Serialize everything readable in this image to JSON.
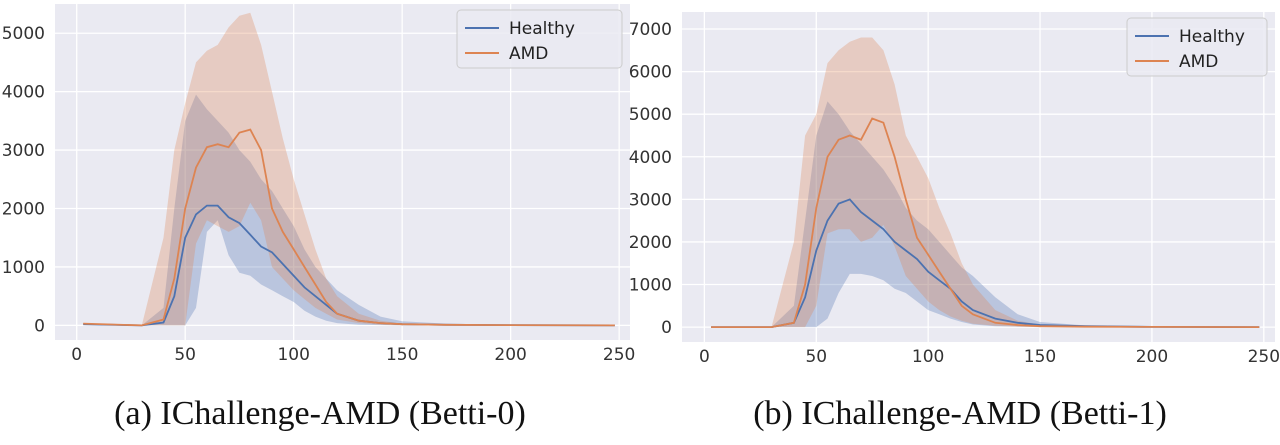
{
  "chart_data": [
    {
      "type": "area",
      "caption_letter": "(a)",
      "caption_text": "IChallenge-AMD (Betti-0)",
      "x_ticks": [
        0,
        50,
        100,
        150,
        200,
        250
      ],
      "y_ticks": [
        0,
        1000,
        2000,
        3000,
        4000,
        5000
      ],
      "xlim": [
        -10,
        255
      ],
      "ylim": [
        -250,
        5500
      ],
      "grid": true,
      "legend_position": "top-right",
      "series": [
        {
          "name": "Healthy",
          "color": "#4c72b0",
          "x": [
            3,
            30,
            40,
            45,
            50,
            55,
            60,
            65,
            70,
            75,
            80,
            85,
            90,
            95,
            100,
            105,
            110,
            115,
            120,
            130,
            140,
            150,
            170,
            200,
            248
          ],
          "mean": [
            20,
            0,
            50,
            500,
            1500,
            1900,
            2050,
            2050,
            1850,
            1750,
            1550,
            1350,
            1250,
            1050,
            850,
            650,
            500,
            350,
            200,
            80,
            40,
            20,
            10,
            5,
            0
          ],
          "upper": [
            20,
            0,
            300,
            2000,
            3500,
            3950,
            3700,
            3500,
            3300,
            3000,
            2800,
            2500,
            2300,
            2000,
            1700,
            1300,
            1000,
            800,
            600,
            350,
            150,
            70,
            30,
            10,
            0
          ],
          "lower": [
            20,
            0,
            0,
            0,
            0,
            300,
            1600,
            1800,
            1200,
            900,
            850,
            700,
            600,
            500,
            400,
            250,
            150,
            80,
            40,
            10,
            5,
            0,
            0,
            0,
            0
          ]
        },
        {
          "name": "AMD",
          "color": "#dd8452",
          "x": [
            3,
            30,
            40,
            45,
            50,
            55,
            60,
            65,
            70,
            75,
            80,
            85,
            90,
            95,
            100,
            105,
            110,
            115,
            120,
            130,
            140,
            150,
            170,
            200,
            248
          ],
          "mean": [
            30,
            0,
            100,
            800,
            2000,
            2700,
            3050,
            3100,
            3050,
            3300,
            3350,
            3000,
            2000,
            1600,
            1300,
            1000,
            700,
            400,
            200,
            80,
            40,
            20,
            10,
            5,
            0
          ],
          "upper": [
            30,
            0,
            1500,
            3000,
            3800,
            4500,
            4700,
            4800,
            5100,
            5300,
            5350,
            4800,
            4000,
            3200,
            2500,
            1900,
            1300,
            800,
            500,
            200,
            80,
            30,
            10,
            5,
            0
          ],
          "lower": [
            30,
            0,
            0,
            0,
            0,
            1400,
            1800,
            1700,
            1600,
            1700,
            2100,
            1800,
            1000,
            800,
            600,
            450,
            300,
            200,
            100,
            40,
            10,
            0,
            0,
            0,
            0
          ]
        }
      ]
    },
    {
      "type": "area",
      "caption_letter": "(b)",
      "caption_text": "IChallenge-AMD (Betti-1)",
      "x_ticks": [
        0,
        50,
        100,
        150,
        200,
        250
      ],
      "y_ticks": [
        0,
        1000,
        2000,
        3000,
        4000,
        5000,
        6000,
        7000
      ],
      "xlim": [
        -10,
        255
      ],
      "ylim": [
        -350,
        7400
      ],
      "grid": true,
      "legend_position": "top-right",
      "series": [
        {
          "name": "Healthy",
          "color": "#4c72b0",
          "x": [
            3,
            30,
            40,
            45,
            50,
            55,
            60,
            65,
            70,
            75,
            80,
            85,
            90,
            95,
            100,
            105,
            110,
            115,
            120,
            130,
            140,
            150,
            170,
            200,
            248
          ],
          "mean": [
            0,
            0,
            100,
            700,
            1800,
            2500,
            2900,
            3000,
            2700,
            2500,
            2300,
            2000,
            1800,
            1600,
            1300,
            1100,
            900,
            600,
            400,
            200,
            100,
            50,
            20,
            5,
            0
          ],
          "upper": [
            0,
            0,
            500,
            2500,
            4500,
            5300,
            5000,
            4600,
            4300,
            4000,
            3700,
            3300,
            2800,
            2500,
            2300,
            2000,
            1700,
            1400,
            1200,
            700,
            300,
            120,
            40,
            10,
            0
          ],
          "lower": [
            0,
            0,
            0,
            0,
            0,
            200,
            800,
            1250,
            1250,
            1200,
            1100,
            900,
            800,
            600,
            400,
            300,
            200,
            120,
            60,
            20,
            10,
            0,
            0,
            0,
            0
          ]
        },
        {
          "name": "AMD",
          "color": "#dd8452",
          "x": [
            3,
            30,
            40,
            45,
            50,
            55,
            60,
            65,
            70,
            75,
            80,
            85,
            90,
            95,
            100,
            105,
            110,
            115,
            120,
            130,
            140,
            150,
            170,
            200,
            248
          ],
          "mean": [
            0,
            0,
            100,
            1000,
            2800,
            4000,
            4400,
            4500,
            4400,
            4900,
            4800,
            4000,
            3000,
            2100,
            1700,
            1300,
            900,
            500,
            300,
            100,
            50,
            20,
            10,
            5,
            0
          ],
          "upper": [
            0,
            0,
            2000,
            4500,
            5000,
            6200,
            6500,
            6700,
            6800,
            6800,
            6500,
            5700,
            4500,
            4000,
            3500,
            2800,
            2200,
            1500,
            1000,
            400,
            150,
            60,
            20,
            5,
            0
          ],
          "lower": [
            0,
            0,
            0,
            0,
            500,
            2200,
            2300,
            2300,
            2000,
            2100,
            2400,
            1900,
            1200,
            900,
            600,
            400,
            250,
            150,
            80,
            30,
            10,
            0,
            0,
            0,
            0
          ]
        }
      ]
    }
  ]
}
